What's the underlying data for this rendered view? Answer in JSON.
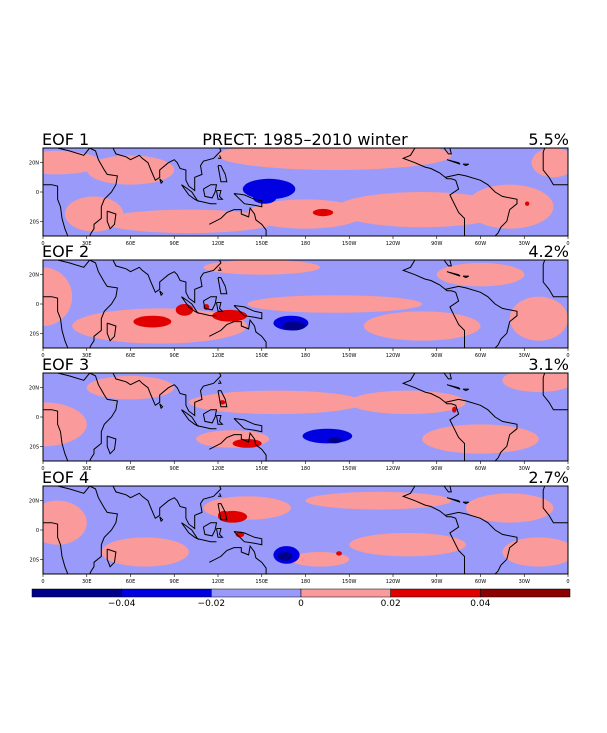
{
  "chart_data": {
    "type": "map-contour",
    "title": "PRECT: 1985–2010 winter",
    "panels": [
      {
        "label": "EOF 1",
        "variance": "5.5%",
        "title": "PRECT: 1985–2010 winter"
      },
      {
        "label": "EOF 2",
        "variance": "4.2%"
      },
      {
        "label": "EOF 3",
        "variance": "3.1%"
      },
      {
        "label": "EOF 4",
        "variance": "2.7%"
      }
    ],
    "x_tick_labels": [
      "0",
      "30E",
      "60E",
      "90E",
      "120E",
      "150E",
      "180",
      "150W",
      "120W",
      "90W",
      "60W",
      "30W",
      "0"
    ],
    "y_tick_labels": [
      "20N",
      "0",
      "20S"
    ],
    "xlim": [
      0,
      360
    ],
    "ylim": [
      -30,
      30
    ],
    "colorbar": {
      "bins": [
        {
          "from": -0.06,
          "to": -0.04,
          "color": "#00008b"
        },
        {
          "from": -0.04,
          "to": -0.02,
          "color": "#0000e0"
        },
        {
          "from": -0.02,
          "to": 0.0,
          "color": "#9a9afa"
        },
        {
          "from": 0.0,
          "to": 0.02,
          "color": "#fa9a9a"
        },
        {
          "from": 0.02,
          "to": 0.04,
          "color": "#e00000"
        },
        {
          "from": 0.04,
          "to": 0.06,
          "color": "#8b0000"
        }
      ],
      "tick_labels": [
        "−0.04",
        "−0.02",
        "0",
        "0.02",
        "0.04"
      ],
      "tick_values": [
        -0.04,
        -0.02,
        0,
        0.02,
        0.04
      ]
    }
  }
}
